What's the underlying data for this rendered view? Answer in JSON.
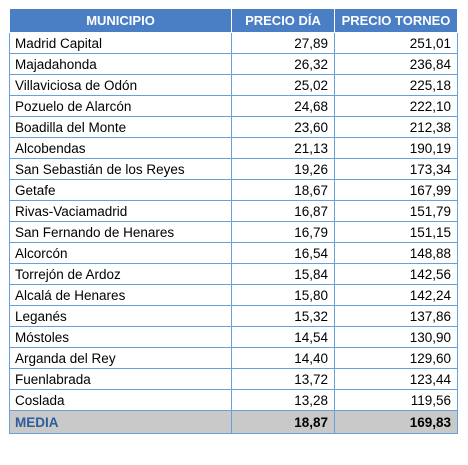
{
  "header": {
    "col1": "MUNICIPIO",
    "col2": "PRECIO DÍA",
    "col3": "PRECIO TORNEO"
  },
  "rows": [
    {
      "municipio": "Madrid Capital",
      "precio_dia": "27,89",
      "precio_torneo": "251,01"
    },
    {
      "municipio": "Majadahonda",
      "precio_dia": "26,32",
      "precio_torneo": "236,84"
    },
    {
      "municipio": "Villaviciosa de Odón",
      "precio_dia": "25,02",
      "precio_torneo": "225,18"
    },
    {
      "municipio": "Pozuelo de Alarcón",
      "precio_dia": "24,68",
      "precio_torneo": "222,10"
    },
    {
      "municipio": "Boadilla del Monte",
      "precio_dia": "23,60",
      "precio_torneo": "212,38"
    },
    {
      "municipio": "Alcobendas",
      "precio_dia": "21,13",
      "precio_torneo": "190,19"
    },
    {
      "municipio": "San Sebastián de los Reyes",
      "precio_dia": "19,26",
      "precio_torneo": "173,34"
    },
    {
      "municipio": "Getafe",
      "precio_dia": "18,67",
      "precio_torneo": "167,99"
    },
    {
      "municipio": "Rivas-Vaciamadrid",
      "precio_dia": "16,87",
      "precio_torneo": "151,79"
    },
    {
      "municipio": "San Fernando de Henares",
      "precio_dia": "16,79",
      "precio_torneo": "151,15"
    },
    {
      "municipio": "Alcorcón",
      "precio_dia": "16,54",
      "precio_torneo": "148,88"
    },
    {
      "municipio": "Torrejón de Ardoz",
      "precio_dia": "15,84",
      "precio_torneo": "142,56"
    },
    {
      "municipio": "Alcalá de Henares",
      "precio_dia": "15,80",
      "precio_torneo": "142,24"
    },
    {
      "municipio": "Leganés",
      "precio_dia": "15,32",
      "precio_torneo": "137,86"
    },
    {
      "municipio": "Móstoles",
      "precio_dia": "14,54",
      "precio_torneo": "130,90"
    },
    {
      "municipio": "Arganda del Rey",
      "precio_dia": "14,40",
      "precio_torneo": "129,60"
    },
    {
      "municipio": "Fuenlabrada",
      "precio_dia": "13,72",
      "precio_torneo": "123,44"
    },
    {
      "municipio": "Coslada",
      "precio_dia": "13,28",
      "precio_torneo": "119,56"
    }
  ],
  "total": {
    "label": "MEDIA",
    "precio_dia": "18,87",
    "precio_torneo": "169,83"
  },
  "colors": {
    "header_bg": "#4a7fc6",
    "grid": "#6aa0d8",
    "total_bg": "#c9c9c9",
    "total_label": "#2c5d9c"
  }
}
